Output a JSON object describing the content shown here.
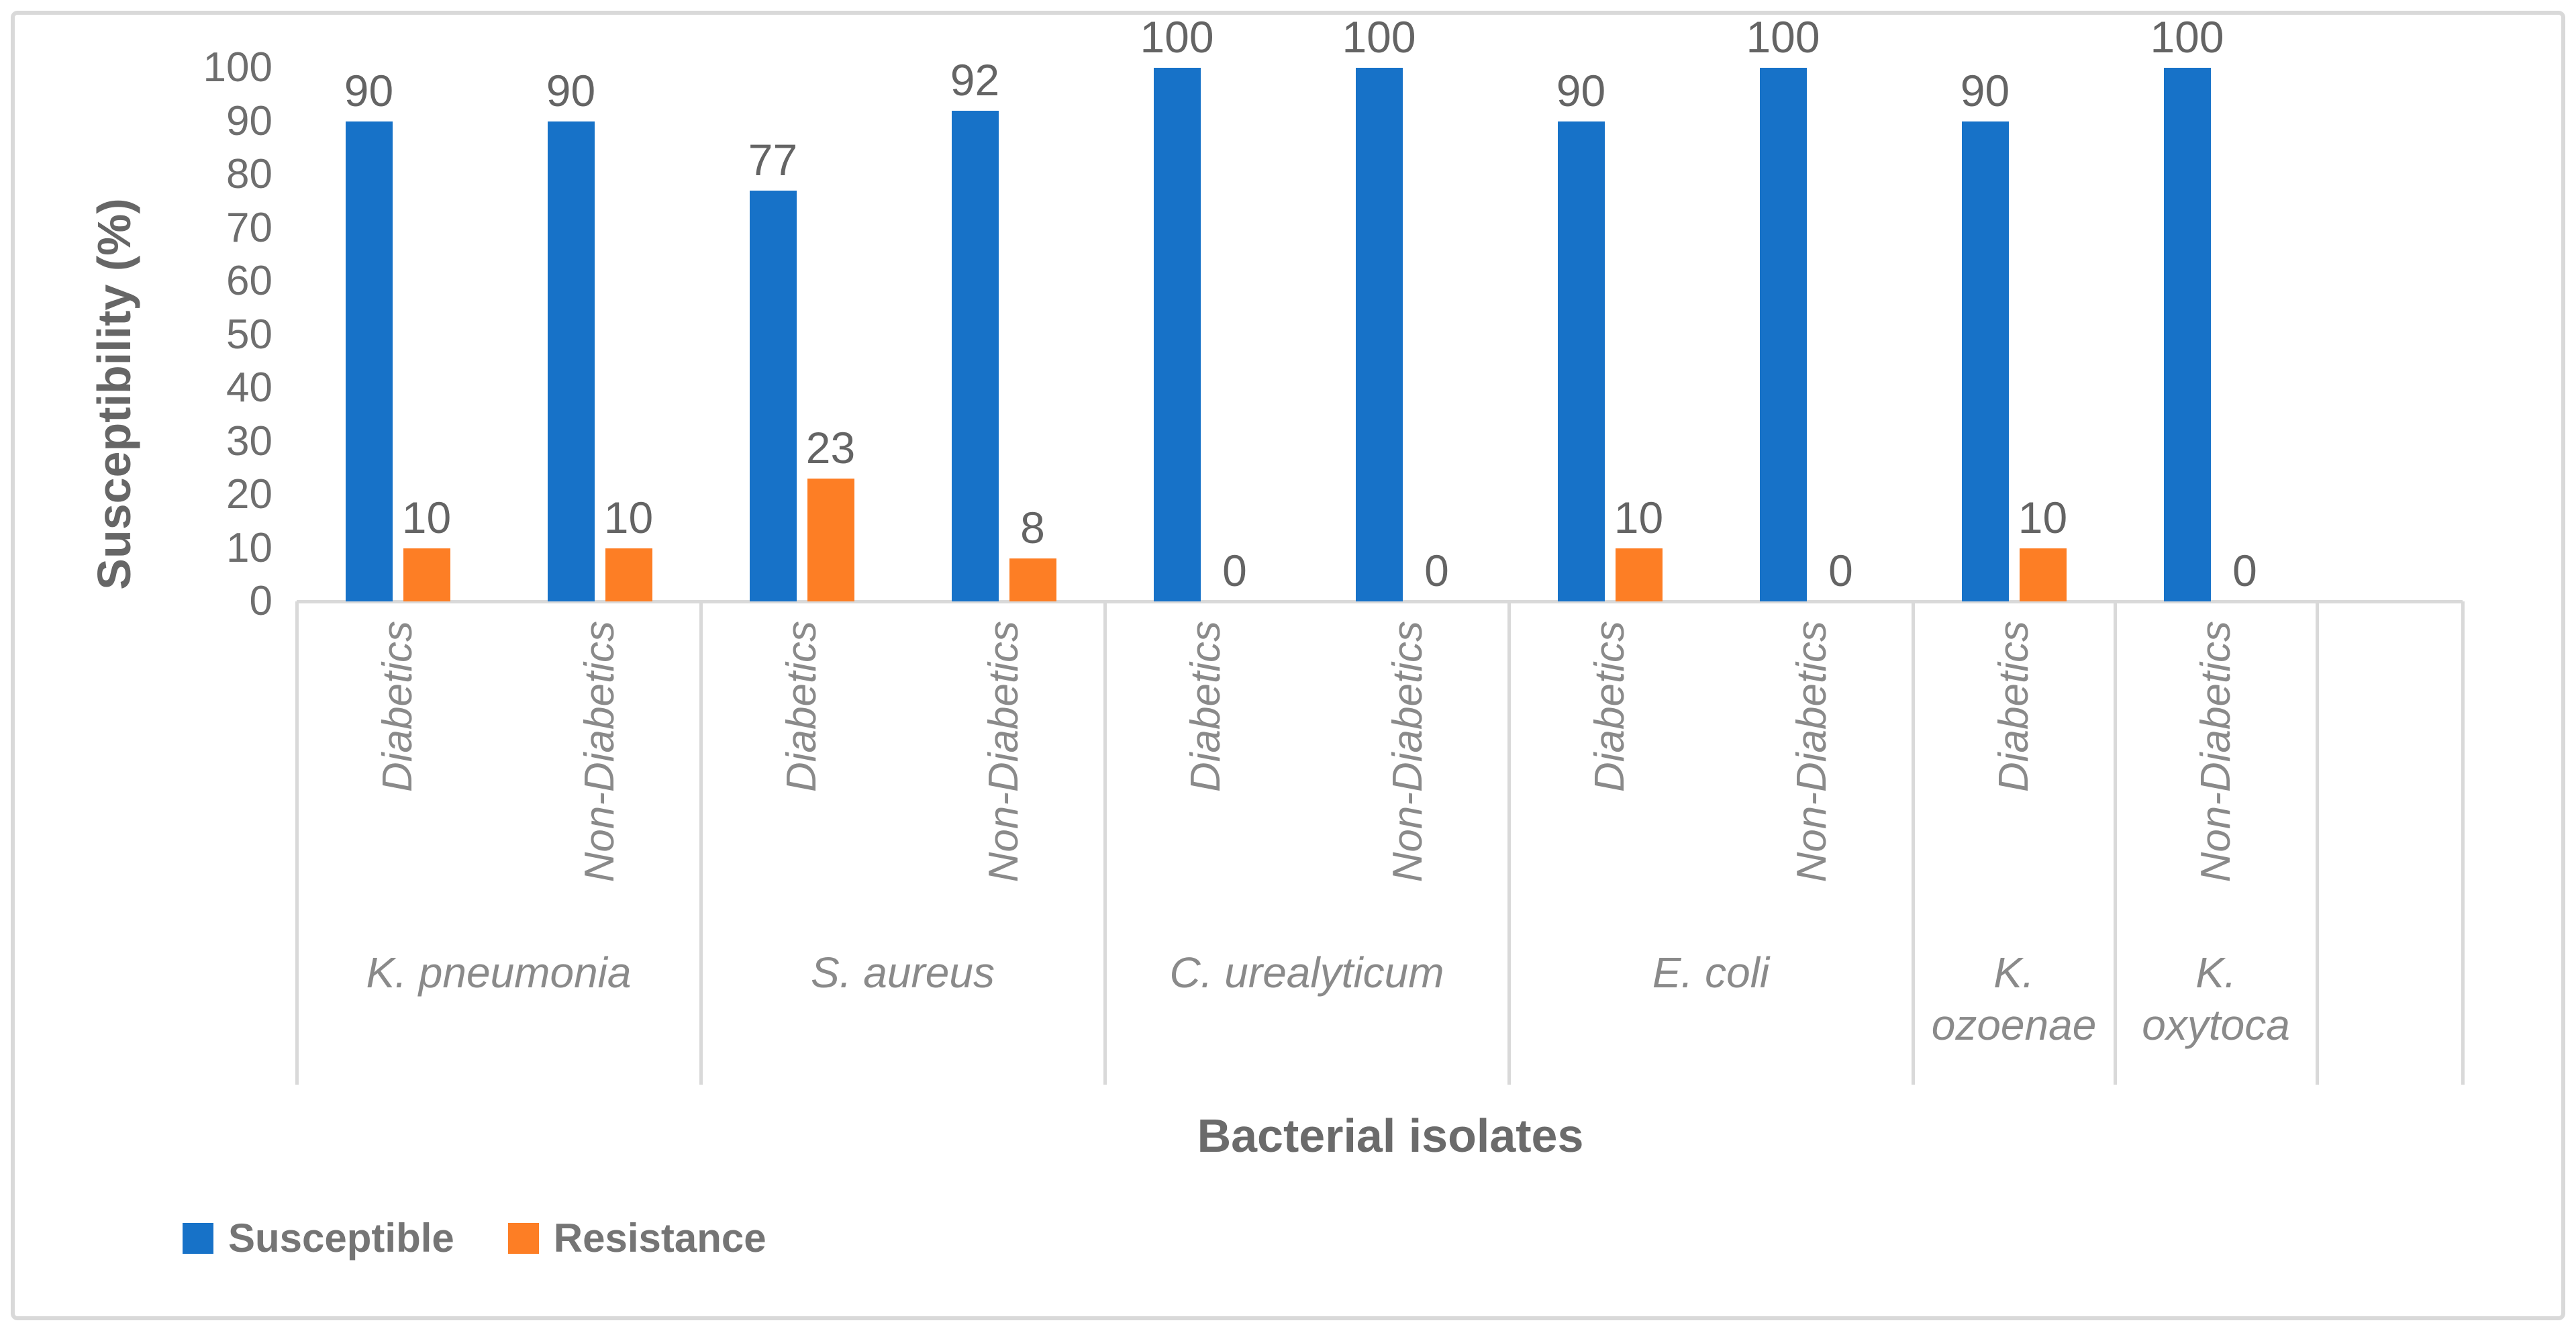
{
  "colors": {
    "susceptible": "#1772c8",
    "resistance": "#fd7e25",
    "axis_line": "#d9d9d9",
    "figure_border": "#d9d9d9",
    "background": "#ffffff",
    "value_label_text": "#646464",
    "category_label_text": "#8a8a8a",
    "title_text": "#666666"
  },
  "chart_data": {
    "type": "bar",
    "title": "",
    "ylabel": "Susceptibility (%)",
    "xlabel": "Bacterial isolates",
    "ylim": [
      0,
      100
    ],
    "ytick_step": 10,
    "yticks": [
      "100",
      "90",
      "80",
      "70",
      "60",
      "50",
      "40",
      "30",
      "20",
      "10",
      "0"
    ],
    "grid": false,
    "legend_position": "bottom-left",
    "series": [
      {
        "name": "Susceptible",
        "color": "#1772c8"
      },
      {
        "name": "Resistance",
        "color": "#fd7e25"
      }
    ],
    "groups": [
      {
        "organism": "K. pneumonia",
        "organism_display": "K. pneumonia",
        "categories": [
          {
            "label": "Diabetics",
            "susceptible": 90,
            "resistance": 10
          },
          {
            "label": "Non-Diabetics",
            "susceptible": 90,
            "resistance": 10
          }
        ]
      },
      {
        "organism": "S. aureus",
        "organism_display": "S. aureus",
        "categories": [
          {
            "label": "Diabetics",
            "susceptible": 77,
            "resistance": 23
          },
          {
            "label": "Non-Diabetics",
            "susceptible": 92,
            "resistance": 8
          }
        ]
      },
      {
        "organism": "C. urealyticum",
        "organism_display": "C. urealyticum",
        "categories": [
          {
            "label": "Diabetics",
            "susceptible": 100,
            "resistance": 0
          },
          {
            "label": "Non-Diabetics",
            "susceptible": 100,
            "resistance": 0
          }
        ]
      },
      {
        "organism": "E. coli",
        "organism_display": "E. coli",
        "categories": [
          {
            "label": "Diabetics",
            "susceptible": 90,
            "resistance": 10
          },
          {
            "label": "Non-Diabetics",
            "susceptible": 100,
            "resistance": 0
          }
        ]
      },
      {
        "organism": "K. ozoenae",
        "organism_display": "K.\nozoenae",
        "categories": [
          {
            "label": "Diabetics",
            "susceptible": 90,
            "resistance": 10
          }
        ]
      },
      {
        "organism": "K. oxytoca",
        "organism_display": "K.\noxytoca",
        "categories": [
          {
            "label": "Non-Diabetics",
            "susceptible": 100,
            "resistance": 0
          }
        ]
      }
    ]
  }
}
